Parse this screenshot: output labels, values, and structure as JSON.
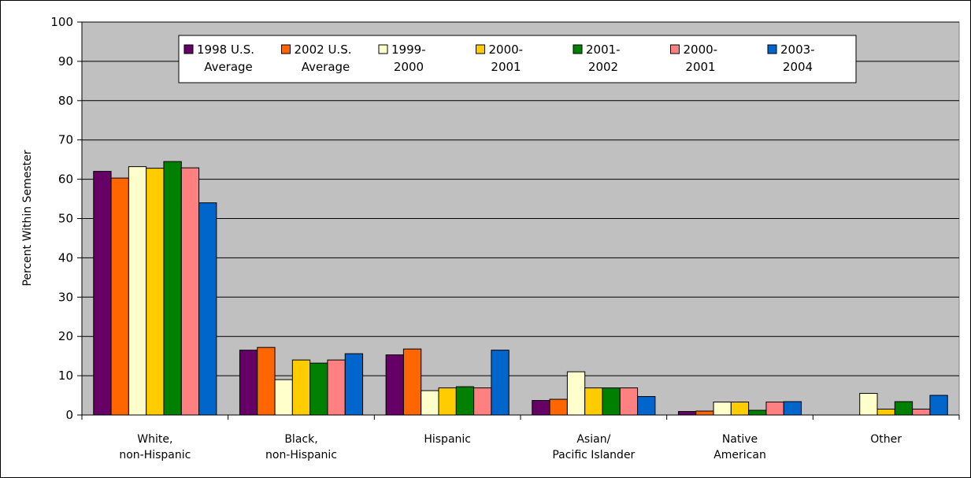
{
  "chart_data": {
    "type": "bar",
    "ylabel": "Percent Within Semester",
    "ylim": [
      0,
      100
    ],
    "y_ticks": [
      0,
      10,
      20,
      30,
      40,
      50,
      60,
      70,
      80,
      90,
      100
    ],
    "grid": "horizontal",
    "legend_position": "top",
    "plot_background": "#C0C0C0",
    "categories": [
      [
        "White,",
        "non-Hispanic"
      ],
      [
        "Black,",
        "non-Hispanic"
      ],
      [
        "Hispanic"
      ],
      [
        "Asian/",
        "Pacific Islander"
      ],
      [
        "Native",
        "American"
      ],
      [
        "Other"
      ]
    ],
    "series": [
      {
        "name": "1998 U.S. Average",
        "legend_lines": [
          "1998 U.S.",
          "Average"
        ],
        "color": "#660066",
        "values": [
          62,
          16.5,
          15.3,
          3.7,
          0.9,
          0
        ]
      },
      {
        "name": "2002 U.S. Average",
        "legend_lines": [
          "2002 U.S.",
          "Average"
        ],
        "color": "#FF6600",
        "values": [
          60.3,
          17.2,
          16.8,
          4,
          1,
          0
        ]
      },
      {
        "name": "1999-2000",
        "legend_lines": [
          "1999-",
          "2000"
        ],
        "color": "#FFFFCC",
        "values": [
          63.2,
          9,
          6.2,
          11,
          3.3,
          5.5
        ]
      },
      {
        "name": "2000-2001",
        "legend_lines": [
          "2000-",
          "2001"
        ],
        "color": "#FFCC00",
        "values": [
          62.8,
          14,
          6.9,
          6.9,
          3.3,
          1.5
        ]
      },
      {
        "name": "2001-2002",
        "legend_lines": [
          "2001-",
          "2002"
        ],
        "color": "#008000",
        "values": [
          64.5,
          13.2,
          7.2,
          6.9,
          1.2,
          3.4
        ]
      },
      {
        "name": "2000-2001",
        "legend_lines": [
          "2000-",
          "2001"
        ],
        "color": "#FF8080",
        "values": [
          62.9,
          14,
          6.9,
          6.9,
          3.3,
          1.5
        ]
      },
      {
        "name": "2003-2004",
        "legend_lines": [
          "2003-",
          "2004"
        ],
        "color": "#0066CC",
        "values": [
          54,
          15.6,
          16.5,
          4.7,
          3.4,
          5
        ]
      }
    ]
  }
}
